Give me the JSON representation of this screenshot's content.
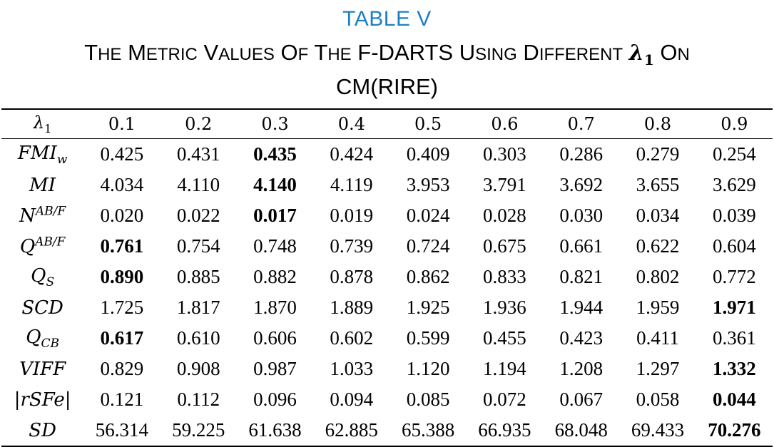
{
  "table_label": "TABLE V",
  "title": {
    "part1": "The Metric Values Of The F-DARTS Using Different",
    "lambda_symbol": "λ",
    "lambda_index": "1",
    "part2": "On CM(RIRE)"
  },
  "header": {
    "row_label": "λ1",
    "lambdas": [
      "0.1",
      "0.2",
      "0.3",
      "0.4",
      "0.5",
      "0.6",
      "0.7",
      "0.8",
      "0.9"
    ]
  },
  "rows": [
    {
      "metric": "FMI_w",
      "values": [
        "0.425",
        "0.431",
        "0.435",
        "0.424",
        "0.409",
        "0.303",
        "0.286",
        "0.279",
        "0.254"
      ],
      "best_index": 2
    },
    {
      "metric": "MI",
      "values": [
        "4.034",
        "4.110",
        "4.140",
        "4.119",
        "3.953",
        "3.791",
        "3.692",
        "3.655",
        "3.629"
      ],
      "best_index": 2
    },
    {
      "metric": "N^AB/F",
      "values": [
        "0.020",
        "0.022",
        "0.017",
        "0.019",
        "0.024",
        "0.028",
        "0.030",
        "0.034",
        "0.039"
      ],
      "best_index": 2
    },
    {
      "metric": "Q^AB/F",
      "values": [
        "0.761",
        "0.754",
        "0.748",
        "0.739",
        "0.724",
        "0.675",
        "0.661",
        "0.622",
        "0.604"
      ],
      "best_index": 0
    },
    {
      "metric": "Q_S",
      "values": [
        "0.890",
        "0.885",
        "0.882",
        "0.878",
        "0.862",
        "0.833",
        "0.821",
        "0.802",
        "0.772"
      ],
      "best_index": 0
    },
    {
      "metric": "SCD",
      "values": [
        "1.725",
        "1.817",
        "1.870",
        "1.889",
        "1.925",
        "1.936",
        "1.944",
        "1.959",
        "1.971"
      ],
      "best_index": 8
    },
    {
      "metric": "Q_CB",
      "values": [
        "0.617",
        "0.610",
        "0.606",
        "0.602",
        "0.599",
        "0.455",
        "0.423",
        "0.411",
        "0.361"
      ],
      "best_index": 0
    },
    {
      "metric": "VIFF",
      "values": [
        "0.829",
        "0.908",
        "0.987",
        "1.033",
        "1.120",
        "1.194",
        "1.208",
        "1.297",
        "1.332"
      ],
      "best_index": 8
    },
    {
      "metric": "|rSFe|",
      "values": [
        "0.121",
        "0.112",
        "0.096",
        "0.094",
        "0.085",
        "0.072",
        "0.067",
        "0.058",
        "0.044"
      ],
      "best_index": 8
    },
    {
      "metric": "SD",
      "values": [
        "56.314",
        "59.225",
        "61.638",
        "62.885",
        "65.388",
        "66.935",
        "68.048",
        "69.433",
        "70.276"
      ],
      "best_index": 8
    }
  ]
}
